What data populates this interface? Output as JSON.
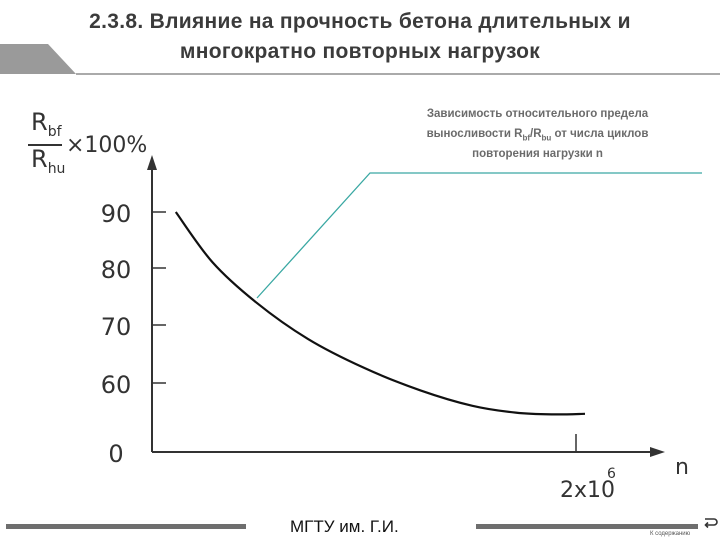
{
  "header": {
    "title_line1": "2.3.8. Влияние на прочность бетона длительных и",
    "title_line2": "многократно повторных нагрузок"
  },
  "annotation": {
    "line1": "Зависимость относительного предела",
    "line2_pre": "выносливости R",
    "line2_sub1": "bf",
    "line2_mid": "/R",
    "line2_sub2": "bu",
    "line2_post": " от числа циклов",
    "line3": "повторения нагрузки n"
  },
  "y_axis": {
    "num_letter": "R",
    "num_sub": "bf",
    "den_letter": "R",
    "den_sub": "hu",
    "multiplier": "×100%"
  },
  "chart_data": {
    "type": "line",
    "title": "",
    "xlabel": "n",
    "ylabel": "Rbf/Rhu ×100%",
    "x_tick_labels": [
      {
        "text": "2x10",
        "sup": "6"
      }
    ],
    "y_tick_labels": [
      "90",
      "80",
      "70",
      "60",
      "0"
    ],
    "series": [
      {
        "x": [
          0.055,
          0.14,
          0.24,
          0.36,
          0.49,
          0.62,
          0.74,
          0.84,
          0.93,
          1.0
        ],
        "y": [
          90.0,
          81.0,
          74.0,
          67.6,
          62.6,
          58.7,
          56.0,
          54.8,
          54.5,
          54.6
        ]
      }
    ],
    "colors": {
      "curve": "#111111",
      "axes": "#333333",
      "leader": "#3aa8a3"
    }
  },
  "footer": {
    "institution": "МГТУ им. Г.И.",
    "content_label": "К содержанию"
  }
}
